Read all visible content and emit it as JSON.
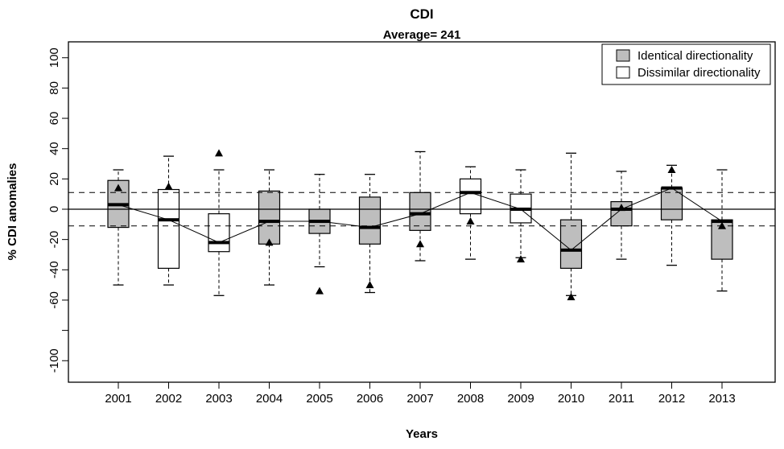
{
  "title": "CDI",
  "subtitle": "Average= 241",
  "axes": {
    "x_label": "Years",
    "y_label": "% CDI anomalies"
  },
  "legend": {
    "items": [
      {
        "label": "Identical directionality",
        "fill": "#bebebe"
      },
      {
        "label": "Dissimilar directionality",
        "fill": "#ffffff"
      }
    ]
  },
  "chart_data": {
    "type": "boxplot",
    "title": "CDI",
    "subtitle": "Average= 241",
    "xlabel": "Years",
    "ylabel": "% CDI anomalies",
    "ylim": [
      -114,
      110
    ],
    "yticks": [
      100,
      80,
      60,
      40,
      20,
      0,
      -20,
      -40,
      -60,
      -80,
      -100
    ],
    "ytick_unlabeled": [
      -80
    ],
    "reference_lines": {
      "solid": [
        0
      ],
      "dashed": [
        11,
        -11
      ]
    },
    "categories": [
      "2001",
      "2002",
      "2003",
      "2004",
      "2005",
      "2006",
      "2007",
      "2008",
      "2009",
      "2010",
      "2011",
      "2012",
      "2013"
    ],
    "groups": {
      "identical": "#bebebe",
      "dissimilar": "#ffffff"
    },
    "point_marker": "filled-triangle-up",
    "median_connecting_line": true,
    "series": [
      {
        "year": "2001",
        "group": "identical",
        "whisker_low": -50,
        "q1": -12,
        "median": 3,
        "q3": 19,
        "whisker_high": 26,
        "point": 14
      },
      {
        "year": "2002",
        "group": "dissimilar",
        "whisker_low": -50,
        "q1": -39,
        "median": -7,
        "q3": 13,
        "whisker_high": 35,
        "point": 15
      },
      {
        "year": "2003",
        "group": "dissimilar",
        "whisker_low": -57,
        "q1": -28,
        "median": -22,
        "q3": -3,
        "whisker_high": 26,
        "point": 37
      },
      {
        "year": "2004",
        "group": "identical",
        "whisker_low": -50,
        "q1": -23,
        "median": -8,
        "q3": 12,
        "whisker_high": 26,
        "point": -22
      },
      {
        "year": "2005",
        "group": "identical",
        "whisker_low": -38,
        "q1": -16,
        "median": -8,
        "q3": 0,
        "whisker_high": 23,
        "point": -54
      },
      {
        "year": "2006",
        "group": "identical",
        "whisker_low": -55,
        "q1": -23,
        "median": -12,
        "q3": 8,
        "whisker_high": 23,
        "point": -50
      },
      {
        "year": "2007",
        "group": "identical",
        "whisker_low": -34,
        "q1": -14,
        "median": -3,
        "q3": 11,
        "whisker_high": 38,
        "point": -23
      },
      {
        "year": "2008",
        "group": "dissimilar",
        "whisker_low": -33,
        "q1": -3,
        "median": 11,
        "q3": 20,
        "whisker_high": 28,
        "point": -8
      },
      {
        "year": "2009",
        "group": "dissimilar",
        "whisker_low": -32,
        "q1": -9,
        "median": 0,
        "q3": 10,
        "whisker_high": 26,
        "point": -33
      },
      {
        "year": "2010",
        "group": "identical",
        "whisker_low": -57,
        "q1": -39,
        "median": -27,
        "q3": -7,
        "whisker_high": 37,
        "point": -58
      },
      {
        "year": "2011",
        "group": "identical",
        "whisker_low": -33,
        "q1": -11,
        "median": 0,
        "q3": 5,
        "whisker_high": 25,
        "point": 1
      },
      {
        "year": "2012",
        "group": "identical",
        "whisker_low": -37,
        "q1": -7,
        "median": 14,
        "q3": 14,
        "whisker_high": 29,
        "point": 26
      },
      {
        "year": "2013",
        "group": "identical",
        "whisker_low": -54,
        "q1": -33,
        "median": -8,
        "q3": -7,
        "whisker_high": 26,
        "point": -11
      }
    ]
  }
}
